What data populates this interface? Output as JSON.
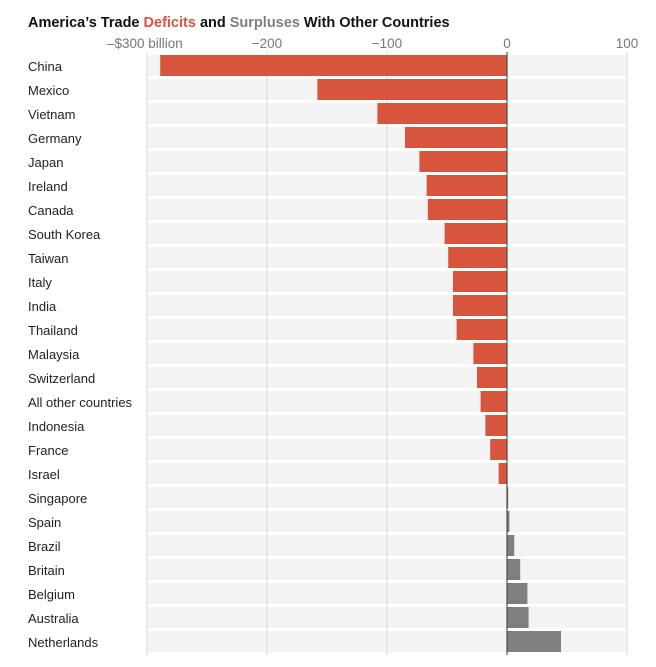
{
  "chart_data": {
    "type": "bar",
    "orientation": "horizontal",
    "title": {
      "prefix": "America’s Trade ",
      "deficit_word": "Deficits",
      "middle": " and ",
      "surplus_word": "Surpluses",
      "suffix": " With Other Countries"
    },
    "xlim": [
      -300,
      100
    ],
    "ticks": [
      {
        "value": -300,
        "label": "–$300 billion"
      },
      {
        "value": -200,
        "label": "−200"
      },
      {
        "value": -100,
        "label": "−100"
      },
      {
        "value": 0,
        "label": "0"
      },
      {
        "value": 100,
        "label": "100"
      }
    ],
    "categories": [
      "China",
      "Mexico",
      "Vietnam",
      "Germany",
      "Japan",
      "Ireland",
      "Canada",
      "South Korea",
      "Taiwan",
      "Italy",
      "India",
      "Thailand",
      "Malaysia",
      "Switzerland",
      "All other countries",
      "Indonesia",
      "France",
      "Israel",
      "Singapore",
      "Spain",
      "Brazil",
      "Britain",
      "Belgium",
      "Australia",
      "Netherlands"
    ],
    "values": [
      -289,
      -158,
      -108,
      -85,
      -73,
      -67,
      -66,
      -52,
      -49,
      -45,
      -45,
      -42,
      -28,
      -25,
      -22,
      -18,
      -14,
      -7,
      1,
      2,
      6,
      11,
      17,
      18,
      45
    ],
    "colors": {
      "deficit": "#d6553c",
      "surplus": "#7f7f7f",
      "row_background": "#f3f3f3",
      "gridline": "#d8d8d8",
      "zero_line": "#333333",
      "title_text": "#121212"
    }
  }
}
